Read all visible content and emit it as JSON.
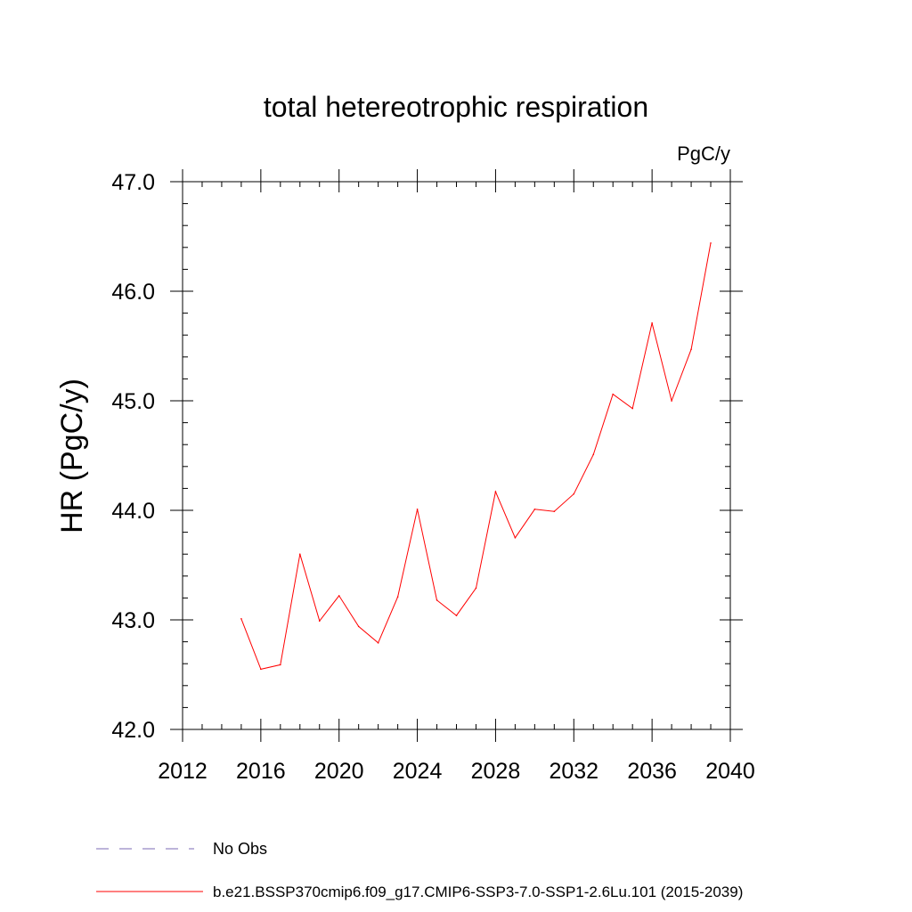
{
  "chart_data": {
    "type": "line",
    "title": "total hetereotrophic respiration",
    "units_label": "PgC/y",
    "ylabel": "HR  (PgC/y)",
    "xlabel": "",
    "xlim": [
      2012,
      2040
    ],
    "ylim": [
      42.0,
      47.0
    ],
    "x_ticks": [
      2012,
      2016,
      2020,
      2024,
      2028,
      2032,
      2036,
      2040
    ],
    "x_tick_labels": [
      "2012",
      "2016",
      "2020",
      "2024",
      "2028",
      "2032",
      "2036",
      "2040"
    ],
    "y_ticks": [
      42.0,
      43.0,
      44.0,
      45.0,
      46.0,
      47.0
    ],
    "y_tick_labels": [
      "42.0",
      "43.0",
      "44.0",
      "45.0",
      "46.0",
      "47.0"
    ],
    "grid": false,
    "legend_position": "bottom",
    "series": [
      {
        "name": "b.e21.BSSP370cmip6.f09_g17.CMIP6-SSP3-7.0-SSP1-2.6Lu.101 (2015-2039)",
        "color": "#ff0000",
        "style": "solid",
        "x": [
          2015,
          2016,
          2017,
          2018,
          2019,
          2020,
          2021,
          2022,
          2023,
          2024,
          2025,
          2026,
          2027,
          2028,
          2029,
          2030,
          2031,
          2032,
          2033,
          2034,
          2035,
          2036,
          2037,
          2038,
          2039
        ],
        "values": [
          43.01,
          42.55,
          42.59,
          43.6,
          42.99,
          43.22,
          42.94,
          42.79,
          43.21,
          44.01,
          43.18,
          43.04,
          43.29,
          44.17,
          43.75,
          44.01,
          43.99,
          44.15,
          44.51,
          45.06,
          44.93,
          45.71,
          45.0,
          45.47,
          46.44
        ]
      }
    ],
    "legend": [
      {
        "label": "No Obs",
        "color": "#7b68b5",
        "style": "dashed"
      },
      {
        "label": "b.e21.BSSP370cmip6.f09_g17.CMIP6-SSP3-7.0-SSP1-2.6Lu.101 (2015-2039)",
        "color": "#ff0000",
        "style": "solid"
      }
    ]
  }
}
